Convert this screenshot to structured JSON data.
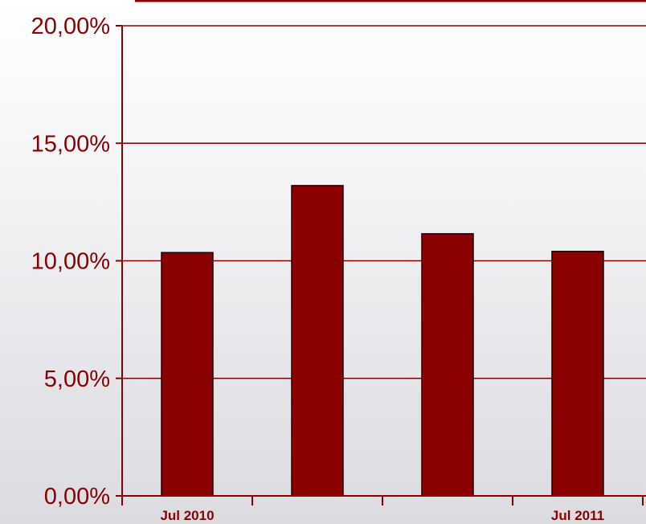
{
  "chart_data": {
    "type": "bar",
    "title": "",
    "xlabel": "",
    "ylabel": "",
    "categories": [
      "Jul 2010",
      "",
      "",
      "Jul 2011"
    ],
    "values": [
      10.35,
      13.2,
      11.15,
      10.4
    ],
    "ylim": [
      0,
      20
    ],
    "yticks": [
      0,
      5,
      10,
      15,
      20
    ],
    "ytick_labels": [
      "0,00%",
      "5,00%",
      "10,00%",
      "15,00%",
      "20,00%"
    ],
    "grid": true,
    "legend": "none",
    "colors": {
      "bar": "#8b0000",
      "axis": "#8a0000",
      "bar_outline": "#1a0000"
    }
  }
}
